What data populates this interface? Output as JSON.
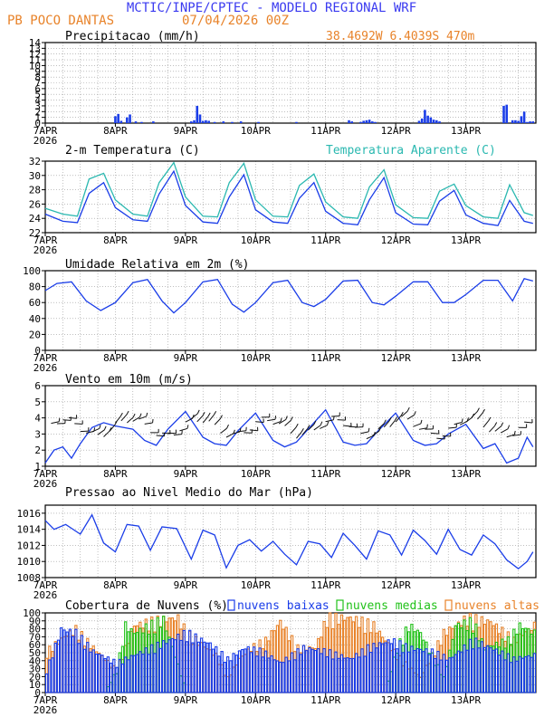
{
  "header": {
    "title": "MCTIC/INPE/CPTEC - MODELO REGIONAL WRF",
    "station": "PB POCO DANTAS",
    "run": "07/04/2026 00Z",
    "coords": "38.4692W 6.4039S 470m",
    "colors": {
      "title": "#3a3af0",
      "station": "#e8832a"
    }
  },
  "x_axis": {
    "day_labels": [
      "7APR",
      "8APR",
      "9APR",
      "10APR",
      "11APR",
      "12APR",
      "13APR"
    ],
    "year": "2026"
  },
  "chart_data": [
    {
      "type": "bar",
      "title": "Precipitacao (mm/h)",
      "ylim": [
        0,
        14
      ],
      "yticks": [
        "0",
        "1",
        "2",
        "3",
        "4",
        "5",
        "6",
        "7",
        "8",
        "9",
        "10",
        "11",
        "12",
        "13",
        "14"
      ],
      "color": "#1a3de8",
      "x_hours": [
        24,
        25,
        26,
        28,
        29,
        31,
        33,
        37,
        50,
        51,
        52,
        53,
        54,
        55,
        56,
        58,
        61,
        64,
        67,
        73,
        86,
        104,
        105,
        108,
        109,
        110,
        111,
        112,
        113,
        128,
        129,
        130,
        131,
        132,
        133,
        134,
        135,
        157,
        158,
        160,
        161,
        162,
        163,
        164,
        165,
        166,
        167
      ],
      "values": [
        1.2,
        1.6,
        0.4,
        1.0,
        1.5,
        0.3,
        0.2,
        0.3,
        0.3,
        0.5,
        3.0,
        1.5,
        0.4,
        0.5,
        0.4,
        0.2,
        0.3,
        0.2,
        0.3,
        0.2,
        0.2,
        0.5,
        0.3,
        0.2,
        0.4,
        0.5,
        0.6,
        0.3,
        0.2,
        0.4,
        0.8,
        2.3,
        1.3,
        1.0,
        0.6,
        0.5,
        0.3,
        3.0,
        3.2,
        0.5,
        0.5,
        0.4,
        1.2,
        2.0,
        0.2,
        0.3,
        0.3
      ]
    },
    {
      "type": "line",
      "title": "2-m Temperatura (C)",
      "legend": "Temperatura Aparente (C)",
      "ylim": [
        22,
        32
      ],
      "yticks": [
        "22",
        "24",
        "26",
        "28",
        "30",
        "32"
      ],
      "series": [
        {
          "color": "#1a3de8",
          "hours": [
            0,
            6,
            11,
            15,
            20,
            24,
            30,
            35,
            39,
            44,
            48,
            54,
            59,
            63,
            68,
            72,
            78,
            83,
            87,
            92,
            96,
            102,
            107,
            111,
            116,
            120,
            126,
            131,
            135,
            140,
            144,
            150,
            155,
            159,
            164,
            167
          ],
          "values": [
            24.6,
            23.6,
            23.4,
            27.5,
            29.0,
            25.5,
            23.8,
            23.6,
            27.4,
            30.6,
            25.8,
            23.5,
            23.3,
            27.0,
            30.1,
            25.2,
            23.5,
            23.3,
            26.8,
            29.0,
            25.0,
            23.3,
            23.1,
            26.6,
            29.7,
            24.8,
            23.2,
            23.1,
            26.4,
            27.9,
            24.5,
            23.3,
            23.0,
            26.5,
            23.6,
            23.3
          ]
        },
        {
          "color": "#2ab8b0",
          "hours": [
            0,
            6,
            11,
            15,
            20,
            24,
            30,
            35,
            39,
            44,
            48,
            54,
            59,
            63,
            68,
            72,
            78,
            83,
            87,
            92,
            96,
            102,
            107,
            111,
            116,
            120,
            126,
            131,
            135,
            140,
            144,
            150,
            155,
            159,
            164,
            167
          ],
          "values": [
            25.4,
            24.6,
            24.3,
            29.5,
            30.3,
            26.6,
            24.6,
            24.3,
            29.0,
            31.8,
            27.0,
            24.3,
            24.2,
            29.0,
            31.7,
            26.6,
            24.3,
            24.2,
            28.6,
            30.2,
            26.3,
            24.2,
            24.0,
            28.4,
            30.8,
            25.9,
            24.1,
            24.0,
            27.8,
            28.8,
            25.8,
            24.2,
            24.0,
            28.7,
            24.8,
            24.4
          ]
        }
      ]
    },
    {
      "type": "line",
      "title": "Umidade Relativa em 2m (%)",
      "ylim": [
        0,
        100
      ],
      "yticks": [
        "0",
        "20",
        "40",
        "60",
        "80",
        "100"
      ],
      "series": [
        {
          "color": "#1a3de8",
          "hours": [
            0,
            4,
            9,
            14,
            19,
            24,
            30,
            35,
            40,
            44,
            48,
            54,
            59,
            64,
            68,
            72,
            78,
            83,
            88,
            92,
            96,
            102,
            107,
            112,
            116,
            120,
            126,
            131,
            136,
            140,
            144,
            150,
            155,
            160,
            164,
            167
          ],
          "values": [
            75,
            84,
            86,
            62,
            50,
            60,
            85,
            89,
            62,
            47,
            60,
            86,
            89,
            58,
            48,
            60,
            85,
            88,
            60,
            55,
            64,
            87,
            88,
            60,
            57,
            68,
            86,
            86,
            60,
            60,
            70,
            88,
            88,
            62,
            90,
            87
          ]
        }
      ]
    },
    {
      "type": "line",
      "title": "Vento em 10m (m/s)",
      "ylim": [
        1,
        6
      ],
      "yticks": [
        "1",
        "2",
        "3",
        "4",
        "5",
        "6"
      ],
      "series": [
        {
          "color": "#1a3de8",
          "hours": [
            0,
            3,
            6,
            9,
            12,
            16,
            20,
            24,
            30,
            34,
            38,
            42,
            48,
            54,
            58,
            62,
            66,
            72,
            78,
            82,
            86,
            90,
            96,
            102,
            106,
            110,
            114,
            120,
            126,
            130,
            134,
            138,
            144,
            150,
            154,
            158,
            162,
            165,
            167
          ],
          "values": [
            1.2,
            2.0,
            2.2,
            1.5,
            2.4,
            3.4,
            3.7,
            3.5,
            3.3,
            2.6,
            2.3,
            3.3,
            4.4,
            2.8,
            2.4,
            2.3,
            3.2,
            4.3,
            2.6,
            2.2,
            2.5,
            3.3,
            4.5,
            2.5,
            2.3,
            2.4,
            3.2,
            4.3,
            2.6,
            2.3,
            2.4,
            3.0,
            3.6,
            2.1,
            2.4,
            1.2,
            1.5,
            2.8,
            2.2
          ]
        }
      ],
      "barbs": {
        "color": "#111111",
        "note": "wind barbs around 3.5 m/s level"
      }
    },
    {
      "type": "line",
      "title": "Pressao ao Nivel Medio do Mar (hPa)",
      "ylim": [
        1008,
        1017
      ],
      "yticks": [
        "1008",
        "1010",
        "1012",
        "1014",
        "1016"
      ],
      "series": [
        {
          "color": "#1a3de8",
          "hours": [
            0,
            3,
            7,
            12,
            16,
            20,
            24,
            28,
            32,
            36,
            40,
            45,
            50,
            54,
            58,
            62,
            66,
            70,
            74,
            78,
            82,
            86,
            90,
            94,
            98,
            102,
            106,
            110,
            114,
            118,
            122,
            126,
            130,
            134,
            138,
            142,
            146,
            150,
            154,
            158,
            162,
            165,
            167
          ],
          "values": [
            1015.1,
            1014.0,
            1014.6,
            1013.4,
            1015.8,
            1012.3,
            1011.2,
            1014.6,
            1014.4,
            1011.4,
            1014.3,
            1014.1,
            1010.3,
            1013.9,
            1013.3,
            1009.2,
            1012.0,
            1012.7,
            1011.3,
            1012.5,
            1010.9,
            1009.6,
            1012.5,
            1012.2,
            1010.5,
            1013.5,
            1012.0,
            1010.3,
            1013.8,
            1013.3,
            1010.8,
            1013.9,
            1012.6,
            1010.9,
            1014.0,
            1011.5,
            1010.8,
            1013.3,
            1012.2,
            1010.2,
            1009.1,
            1010.0,
            1011.2
          ]
        }
      ]
    },
    {
      "type": "bar",
      "title": "Cobertura de Nuvens (%)",
      "ylim": [
        0,
        100
      ],
      "yticks": [
        "0",
        "10",
        "20",
        "30",
        "40",
        "50",
        "60",
        "70",
        "80",
        "90",
        "100"
      ],
      "legend": [
        "nuvens baixas",
        "nuvens medias",
        "nuvens altas"
      ],
      "series_colors": {
        "low": "#1a3de8",
        "mid": "#22c21a",
        "high": "#e8832a"
      },
      "high_profile": {
        "hours": [
          0,
          6,
          10,
          16,
          24,
          30,
          40,
          45,
          48,
          58,
          62,
          66,
          70,
          75,
          80,
          86,
          92,
          96,
          104,
          112,
          120,
          128,
          136,
          144,
          152,
          160,
          167
        ],
        "values": [
          55,
          75,
          85,
          60,
          30,
          90,
          98,
          100,
          80,
          50,
          20,
          45,
          60,
          70,
          95,
          60,
          60,
          100,
          100,
          90,
          50,
          20,
          80,
          100,
          95,
          70,
          90
        ]
      },
      "mid_profile": {
        "hours": [
          0,
          20,
          24,
          27,
          30,
          40,
          48,
          112,
          116,
          120,
          124,
          128,
          136,
          140,
          146,
          150,
          158,
          162,
          167
        ],
        "values": [
          0,
          0,
          30,
          90,
          80,
          98,
          0,
          0,
          0,
          60,
          90,
          80,
          20,
          90,
          95,
          60,
          70,
          90,
          80
        ]
      },
      "low_profile": {
        "hours": [
          0,
          5,
          10,
          16,
          24,
          30,
          36,
          42,
          48,
          56,
          62,
          68,
          74,
          80,
          88,
          96,
          104,
          110,
          118,
          124,
          132,
          138,
          146,
          152,
          160,
          167
        ],
        "values": [
          30,
          85,
          80,
          55,
          40,
          50,
          60,
          70,
          80,
          65,
          45,
          60,
          55,
          40,
          60,
          55,
          45,
          60,
          70,
          60,
          55,
          45,
          70,
          60,
          45,
          50
        ]
      }
    }
  ]
}
